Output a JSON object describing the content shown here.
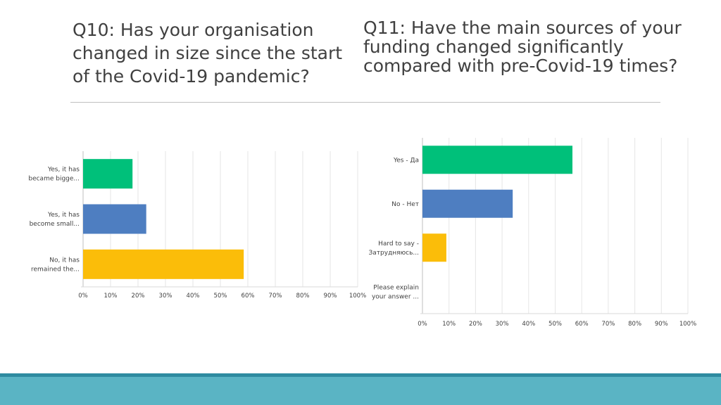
{
  "titles": {
    "q10": "Q10: Has your organisation changed in size since the start of the Covid-19 pandemic?",
    "q11": "Q11: Have the main sources of your funding changed significantly compared with pre-Covid-19 times?"
  },
  "chart_data": [
    {
      "type": "bar",
      "orientation": "horizontal",
      "title": "Q10: Has your organisation changed in size since the start of the Covid-19 pandemic?",
      "categories": [
        [
          "Yes, it has",
          "became bigge..."
        ],
        [
          "Yes, it has",
          "become small..."
        ],
        [
          "No, it has",
          "remained the..."
        ]
      ],
      "values": [
        18,
        23,
        58.5
      ],
      "colors": [
        "#00c07a",
        "#4e7ec1",
        "#fbbd09"
      ],
      "ticks": [
        "0%",
        "10%",
        "20%",
        "30%",
        "40%",
        "50%",
        "60%",
        "70%",
        "80%",
        "90%",
        "100%"
      ],
      "xlim": [
        0,
        100
      ],
      "grid": true,
      "legend": "none"
    },
    {
      "type": "bar",
      "orientation": "horizontal",
      "title": "Q11: Have the main sources of your funding changed significantly compared with pre-Covid-19 times?",
      "categories": [
        [
          "Yes - Да"
        ],
        [
          "No - Нет"
        ],
        [
          "Hard to say -",
          "Затрудняюсь..."
        ],
        [
          "Please explain",
          "your answer ..."
        ]
      ],
      "values": [
        56.5,
        34,
        9,
        0
      ],
      "colors": [
        "#00c07a",
        "#4e7ec1",
        "#fbbd09",
        "#999999"
      ],
      "ticks": [
        "0%",
        "10%",
        "20%",
        "30%",
        "40%",
        "50%",
        "60%",
        "70%",
        "80%",
        "90%",
        "100%"
      ],
      "xlim": [
        0,
        100
      ],
      "grid": true,
      "legend": "none"
    }
  ]
}
